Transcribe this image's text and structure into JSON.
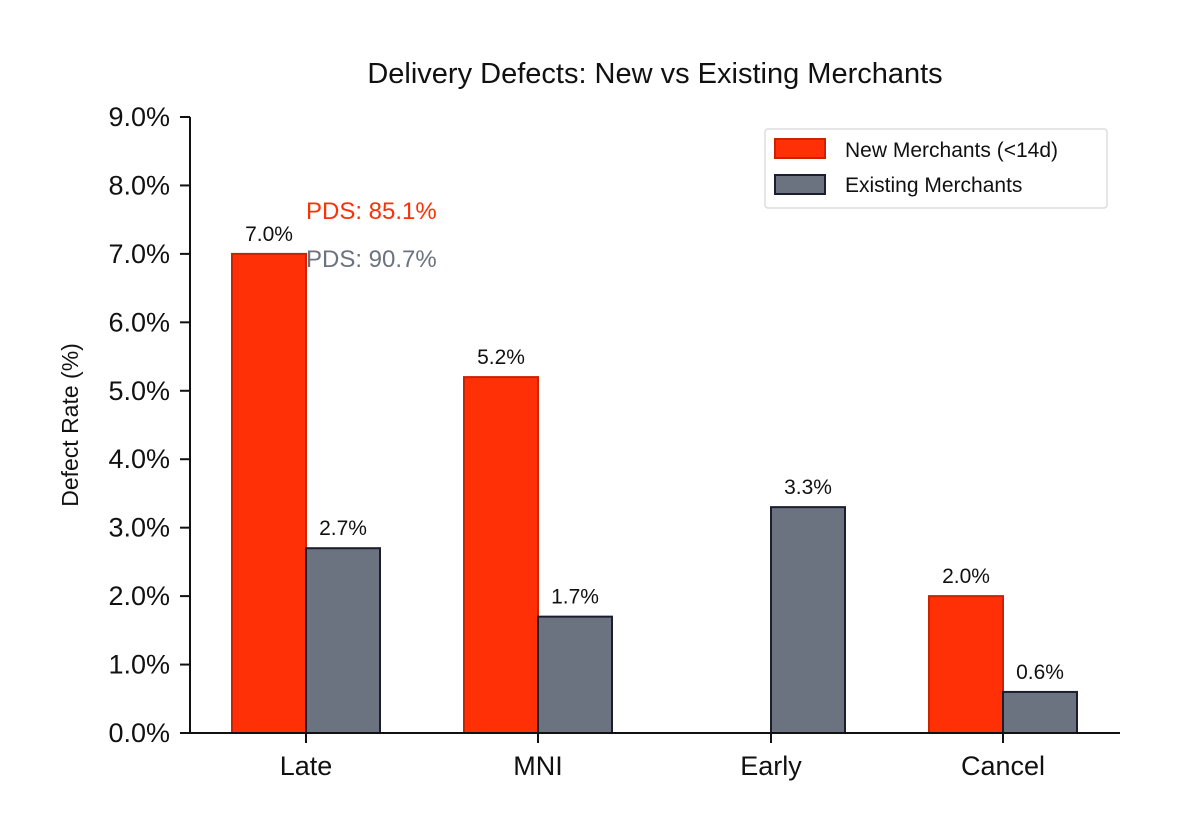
{
  "chart_data": {
    "type": "bar",
    "title": "Delivery Defects: New vs Existing Merchants",
    "xlabel": "",
    "ylabel": "Defect Rate (%)",
    "categories": [
      "Late",
      "MNI",
      "Early",
      "Cancel"
    ],
    "series": [
      {
        "name": "New Merchants (<14d)",
        "color": "#ff2f06",
        "edge_color": "#cc2200",
        "values": [
          7.0,
          5.2,
          0.0,
          2.0
        ],
        "labels": [
          "7.0%",
          "5.2%",
          "",
          "2.0%"
        ]
      },
      {
        "name": "Existing Merchants",
        "color": "#6b7280",
        "edge_color": "#1c1d2e",
        "values": [
          2.7,
          1.7,
          3.3,
          0.6
        ],
        "labels": [
          "2.7%",
          "1.7%",
          "3.3%",
          "0.6%"
        ]
      }
    ],
    "ylim": [
      0,
      9
    ],
    "yticks": [
      0,
      1,
      2,
      3,
      4,
      5,
      6,
      7,
      8,
      9
    ],
    "ytick_labels": [
      "0.0%",
      "1.0%",
      "2.0%",
      "3.0%",
      "4.0%",
      "5.0%",
      "6.0%",
      "7.0%",
      "8.0%",
      "9.0%"
    ],
    "legend_position": "top-right",
    "grid": false,
    "annotations": [
      {
        "text": "PDS: 85.1%",
        "color": "#ff2f06",
        "series": 0
      },
      {
        "text": "PDS: 90.7%",
        "color": "#6b7280",
        "series": 1
      }
    ]
  }
}
